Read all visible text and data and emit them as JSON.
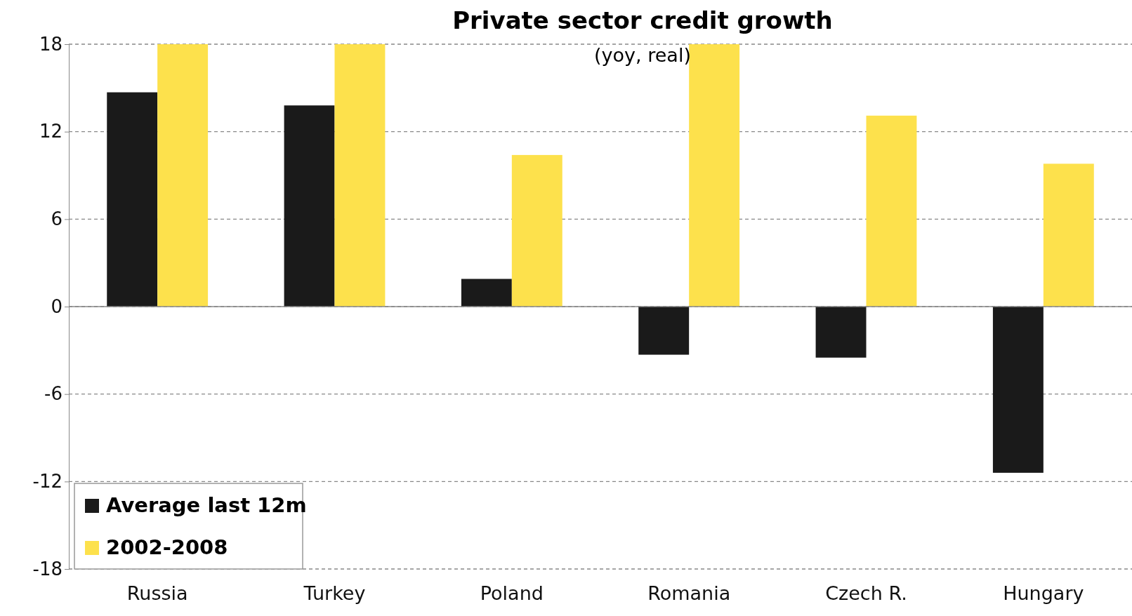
{
  "chart_data": {
    "type": "bar",
    "title": "Private sector credit growth",
    "subtitle": "(yoy, real)",
    "categories": [
      "Russia",
      "Turkey",
      "Poland",
      "Romania",
      "Czech R.",
      "Hungary"
    ],
    "series": [
      {
        "name": "Average last 12m",
        "color": "#1a1a1a",
        "values": [
          14.7,
          13.8,
          1.9,
          -3.3,
          -3.5,
          -11.4
        ]
      },
      {
        "name": "2002-2008",
        "color": "#fde14c",
        "values": [
          18,
          18,
          10.4,
          18,
          13.1,
          9.8
        ]
      }
    ],
    "ylim": [
      -18,
      18
    ],
    "yticks": [
      -18,
      -12,
      -6,
      0,
      6,
      12,
      18
    ],
    "grid": "y",
    "legend": "bottom left"
  }
}
